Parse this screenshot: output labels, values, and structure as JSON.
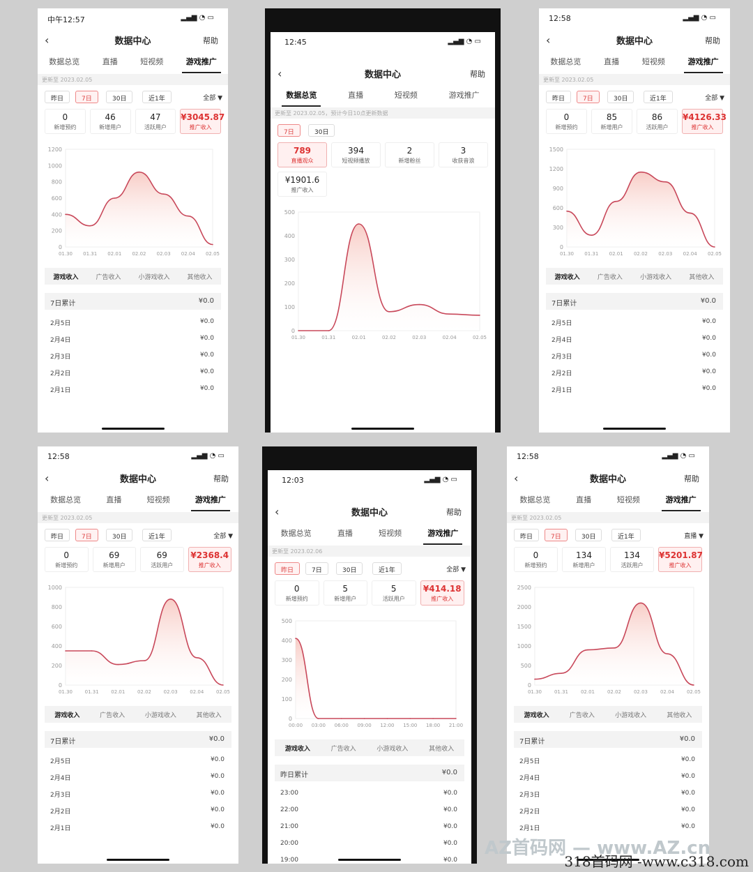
{
  "phones": [
    {
      "time": "中午12:57",
      "header": {
        "title": "数据中心",
        "help": "帮助"
      },
      "tabs": [
        "数据总览",
        "直播",
        "短视频",
        "游戏推广"
      ],
      "active": 3,
      "update": "更新至 2023.02.05",
      "filters": [
        "昨日",
        "7日",
        "30日",
        "近1年"
      ],
      "filter_sel": 1,
      "filter_all": "全部 ▼",
      "stats": [
        {
          "v": "0",
          "l": "新增预约"
        },
        {
          "v": "46",
          "l": "新增用户"
        },
        {
          "v": "47",
          "l": "活跃用户"
        },
        {
          "v": "¥3045.87",
          "l": "推广收入",
          "hl": true
        }
      ],
      "chart": {
        "yticks": [
          "1200",
          "1000",
          "800",
          "600",
          "400",
          "200",
          "0"
        ],
        "ymax": 1200,
        "xticks": [
          "01.30",
          "01.31",
          "02.01",
          "02.02",
          "02.03",
          "02.04",
          "02.05"
        ],
        "values": [
          400,
          260,
          600,
          920,
          650,
          380,
          30
        ]
      },
      "rtabs": [
        "游戏收入",
        "广告收入",
        "小游戏收入",
        "其他收入"
      ],
      "sum": {
        "l": "7日累计",
        "a": "¥0.0"
      },
      "rows": [
        [
          "2月5日",
          "¥0.0"
        ],
        [
          "2月4日",
          "¥0.0"
        ],
        [
          "2月3日",
          "¥0.0"
        ],
        [
          "2月2日",
          "¥0.0"
        ],
        [
          "2月1日",
          "¥0.0"
        ]
      ]
    },
    {
      "time": "12:45",
      "header": {
        "title": "数据中心",
        "help": "帮助"
      },
      "tabs": [
        "数据总览",
        "直播",
        "短视频",
        "游戏推广"
      ],
      "active": 0,
      "update": "更新至 2023.02.05，预计今日10点更新数据",
      "filters": [
        "7日",
        "30日"
      ],
      "filter_sel": 0,
      "filter_all": "",
      "stats": [
        {
          "v": "789",
          "l": "直播观众",
          "hl": true
        },
        {
          "v": "394",
          "l": "短视频播放"
        },
        {
          "v": "2",
          "l": "新增粉丝"
        },
        {
          "v": "3",
          "l": "收获音浪"
        },
        {
          "v": "¥1901.6",
          "l": "推广收入"
        }
      ],
      "chart": {
        "yticks": [
          "500",
          "400",
          "300",
          "200",
          "100",
          "0"
        ],
        "ymax": 500,
        "xticks": [
          "01.30",
          "01.31",
          "02.01",
          "02.02",
          "02.03",
          "02.04",
          "02.05"
        ],
        "values": [
          0,
          0,
          450,
          80,
          110,
          70,
          65
        ]
      }
    },
    {
      "time": "12:58",
      "header": {
        "title": "数据中心",
        "help": "帮助"
      },
      "tabs": [
        "数据总览",
        "直播",
        "短视频",
        "游戏推广"
      ],
      "active": 3,
      "update": "更新至 2023.02.05",
      "filters": [
        "昨日",
        "7日",
        "30日",
        "近1年"
      ],
      "filter_sel": 1,
      "filter_all": "全部 ▼",
      "stats": [
        {
          "v": "0",
          "l": "新增预约"
        },
        {
          "v": "85",
          "l": "新增用户"
        },
        {
          "v": "86",
          "l": "活跃用户"
        },
        {
          "v": "¥4126.33",
          "l": "推广收入",
          "hl": true
        }
      ],
      "chart": {
        "yticks": [
          "1500",
          "1200",
          "900",
          "600",
          "300",
          "0"
        ],
        "ymax": 1500,
        "xticks": [
          "01.30",
          "01.31",
          "02.01",
          "02.02",
          "02.03",
          "02.04",
          "02.05"
        ],
        "values": [
          550,
          180,
          700,
          1150,
          1000,
          520,
          0
        ]
      },
      "rtabs": [
        "游戏收入",
        "广告收入",
        "小游戏收入",
        "其他收入"
      ],
      "sum": {
        "l": "7日累计",
        "a": "¥0.0"
      },
      "rows": [
        [
          "2月5日",
          "¥0.0"
        ],
        [
          "2月4日",
          "¥0.0"
        ],
        [
          "2月3日",
          "¥0.0"
        ],
        [
          "2月2日",
          "¥0.0"
        ],
        [
          "2月1日",
          "¥0.0"
        ]
      ]
    },
    {
      "time": "12:58",
      "header": {
        "title": "数据中心",
        "help": "帮助"
      },
      "tabs": [
        "数据总览",
        "直播",
        "短视频",
        "游戏推广"
      ],
      "active": 3,
      "update": "更新至 2023.02.05",
      "filters": [
        "昨日",
        "7日",
        "30日",
        "近1年"
      ],
      "filter_sel": 1,
      "filter_all": "全部 ▼",
      "stats": [
        {
          "v": "0",
          "l": "新增预约"
        },
        {
          "v": "69",
          "l": "新增用户"
        },
        {
          "v": "69",
          "l": "活跃用户"
        },
        {
          "v": "¥2368.4",
          "l": "推广收入",
          "hl": true
        }
      ],
      "chart": {
        "yticks": [
          "1000",
          "800",
          "600",
          "400",
          "200",
          "0"
        ],
        "ymax": 1000,
        "xticks": [
          "01.30",
          "01.31",
          "02.01",
          "02.02",
          "02.03",
          "02.04",
          "02.05"
        ],
        "values": [
          350,
          350,
          210,
          250,
          880,
          280,
          0
        ]
      },
      "rtabs": [
        "游戏收入",
        "广告收入",
        "小游戏收入",
        "其他收入"
      ],
      "sum": {
        "l": "7日累计",
        "a": "¥0.0"
      },
      "rows": [
        [
          "2月5日",
          "¥0.0"
        ],
        [
          "2月4日",
          "¥0.0"
        ],
        [
          "2月3日",
          "¥0.0"
        ],
        [
          "2月2日",
          "¥0.0"
        ],
        [
          "2月1日",
          "¥0.0"
        ]
      ]
    },
    {
      "time": "12:03",
      "header": {
        "title": "数据中心",
        "help": "帮助"
      },
      "tabs": [
        "数据总览",
        "直播",
        "短视频",
        "游戏推广"
      ],
      "active": 3,
      "update": "更新至 2023.02.06",
      "filters": [
        "昨日",
        "7日",
        "30日",
        "近1年"
      ],
      "filter_sel": 0,
      "filter_all": "全部 ▼",
      "stats": [
        {
          "v": "0",
          "l": "新增预约"
        },
        {
          "v": "5",
          "l": "新增用户"
        },
        {
          "v": "5",
          "l": "活跃用户"
        },
        {
          "v": "¥414.18",
          "l": "推广收入",
          "hl": true
        }
      ],
      "chart": {
        "yticks": [
          "500",
          "400",
          "300",
          "200",
          "100",
          "0"
        ],
        "ymax": 500,
        "xticks": [
          "00:00",
          "03:00",
          "06:00",
          "09:00",
          "12:00",
          "15:00",
          "18:00",
          "21:00"
        ],
        "values": [
          410,
          0,
          0,
          0,
          0,
          0,
          0,
          0
        ]
      },
      "rtabs": [
        "游戏收入",
        "广告收入",
        "小游戏收入",
        "其他收入"
      ],
      "sum": {
        "l": "昨日累计",
        "a": "¥0.0"
      },
      "rows": [
        [
          "23:00",
          "¥0.0"
        ],
        [
          "22:00",
          "¥0.0"
        ],
        [
          "21:00",
          "¥0.0"
        ],
        [
          "20:00",
          "¥0.0"
        ],
        [
          "19:00",
          "¥0.0"
        ]
      ]
    },
    {
      "time": "12:58",
      "header": {
        "title": "数据中心",
        "help": "帮助"
      },
      "tabs": [
        "数据总览",
        "直播",
        "短视频",
        "游戏推广"
      ],
      "active": 3,
      "update": "更新至 2023.02.05",
      "filters": [
        "昨日",
        "7日",
        "30日",
        "近1年"
      ],
      "filter_sel": 1,
      "filter_all": "直播 ▼",
      "stats": [
        {
          "v": "0",
          "l": "新增预约"
        },
        {
          "v": "134",
          "l": "新增用户"
        },
        {
          "v": "134",
          "l": "活跃用户"
        },
        {
          "v": "¥5201.87",
          "l": "推广收入",
          "hl": true
        }
      ],
      "chart": {
        "yticks": [
          "2500",
          "2000",
          "1500",
          "1000",
          "500",
          "0"
        ],
        "ymax": 2500,
        "xticks": [
          "01.30",
          "01.31",
          "02.01",
          "02.02",
          "02.03",
          "02.04",
          "02.05"
        ],
        "values": [
          150,
          300,
          900,
          950,
          2100,
          800,
          0
        ]
      },
      "rtabs": [
        "游戏收入",
        "广告收入",
        "小游戏收入",
        "其他收入"
      ],
      "sum": {
        "l": "7日累计",
        "a": "¥0.0"
      },
      "rows": [
        [
          "2月5日",
          "¥0.0"
        ],
        [
          "2月4日",
          "¥0.0"
        ],
        [
          "2月3日",
          "¥0.0"
        ],
        [
          "2月2日",
          "¥0.0"
        ],
        [
          "2月1日",
          "¥0.0"
        ]
      ]
    }
  ],
  "watermark": "318首码网 -www.c318.com",
  "watermark2": "AZ首码网 — www.AZ.cn"
}
